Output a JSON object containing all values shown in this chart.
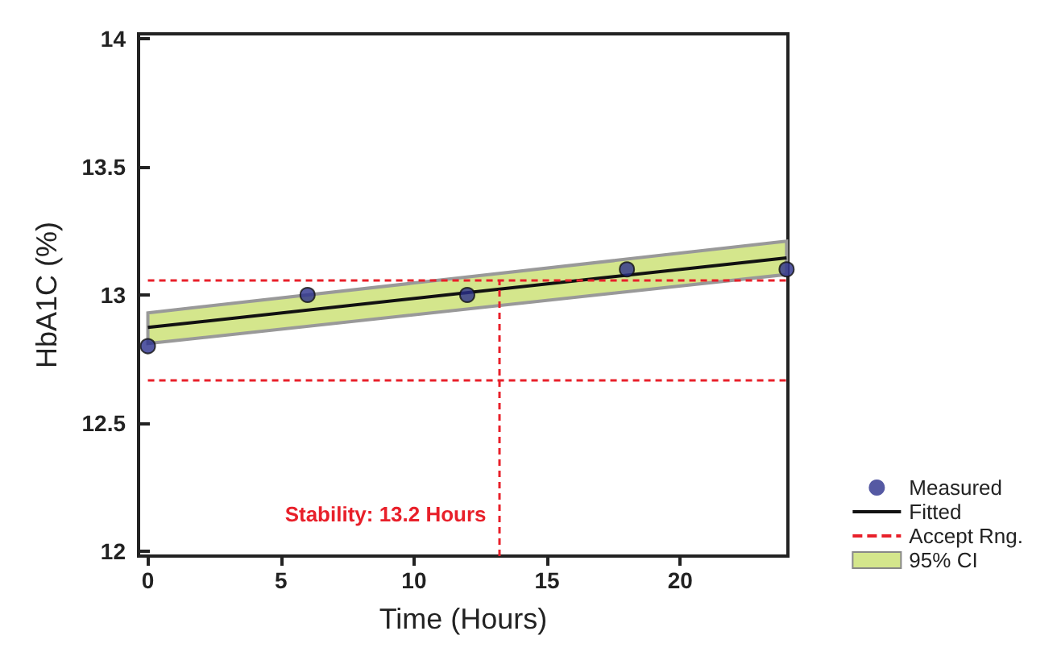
{
  "chart_data": {
    "type": "scatter",
    "xlabel": "Time (Hours)",
    "ylabel": "HbA1C (%)",
    "xlim": [
      -0.35,
      24.05
    ],
    "ylim": [
      11.98,
      14.02
    ],
    "xticks": [
      0,
      5,
      10,
      15,
      20
    ],
    "yticks": [
      12,
      12.5,
      13,
      13.5,
      14
    ],
    "grid": false,
    "legend": "bottom right",
    "series": [
      {
        "name": "Measured",
        "marker": "circle",
        "color": "#2b2f8c",
        "x": [
          0,
          6,
          12,
          18,
          24
        ],
        "values": [
          12.8,
          13.0,
          13.0,
          13.1,
          13.1
        ]
      },
      {
        "name": "Fitted",
        "type": "line",
        "color": "#111111",
        "marker": "none",
        "x": [
          0,
          24
        ],
        "values": [
          12.873,
          13.145
        ],
        "lower": [
          12.81,
          13.08
        ],
        "upper": [
          12.93,
          13.21
        ]
      },
      {
        "name": "95% CI",
        "type": "area",
        "color": "#d4e68c"
      }
    ],
    "ref_lines": [
      {
        "axis": "y",
        "value": 13.06,
        "label": "Accept Rng.",
        "color": "#e8202a",
        "line_style": "dashed"
      },
      {
        "axis": "y",
        "value": 12.67,
        "label": null,
        "color": "#e8202a",
        "line_style": "dashed"
      },
      {
        "axis": "x",
        "value": 13.2,
        "label": "Stability: 13.2 Hours",
        "color": "#e8202a",
        "line_style": "dashed"
      }
    ]
  }
}
